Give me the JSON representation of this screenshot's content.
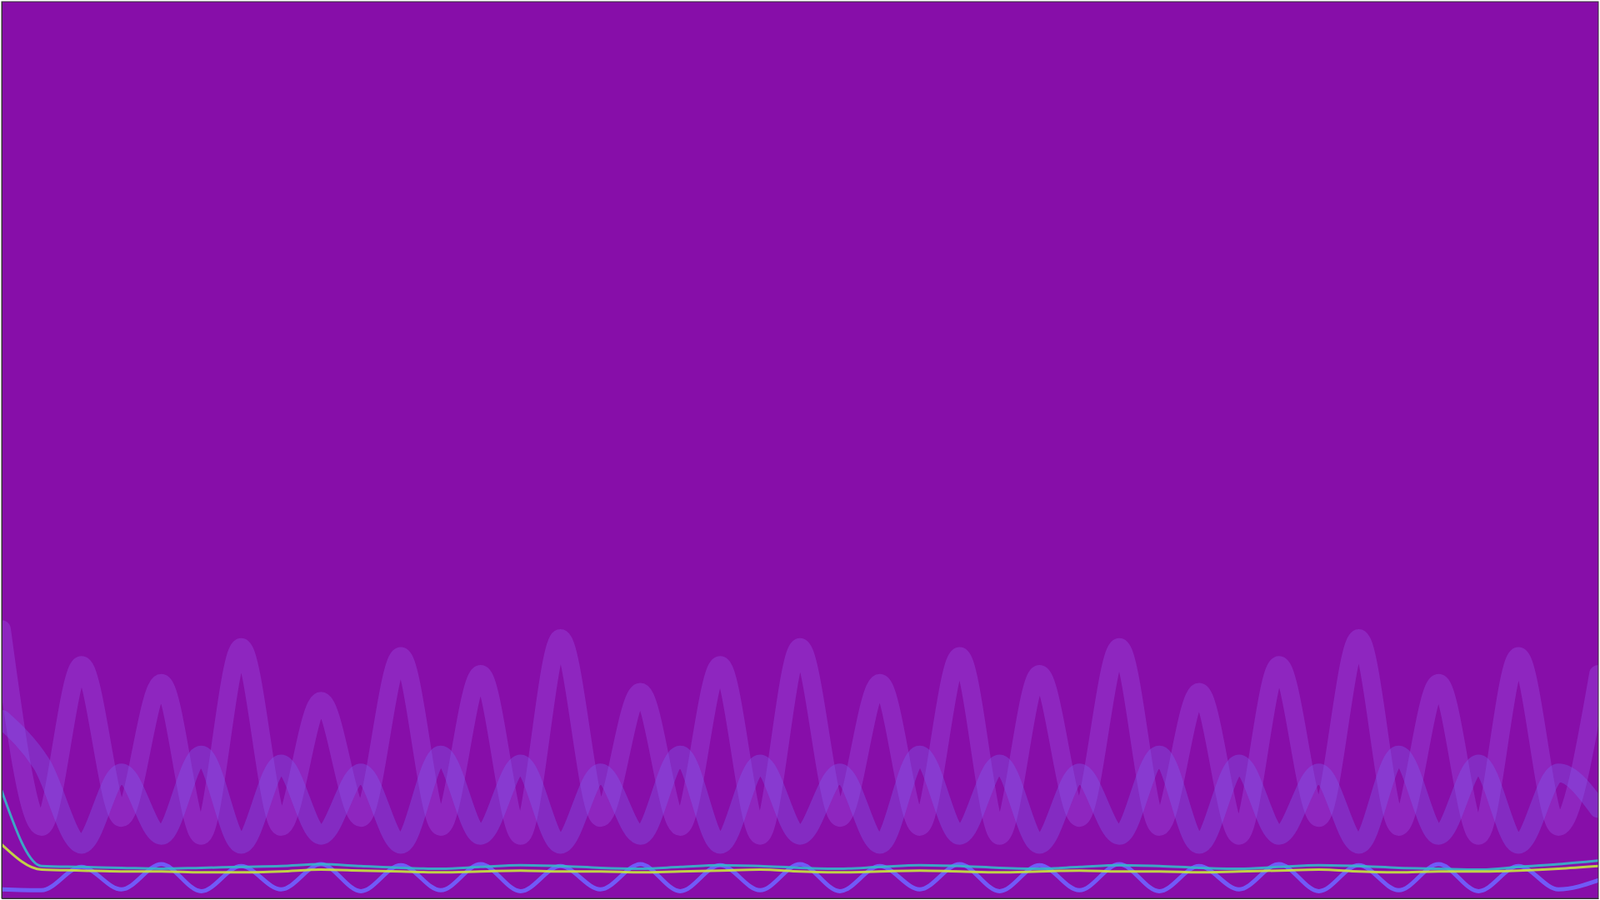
{
  "chart_data": {
    "type": "line",
    "tick_labels": false,
    "grid": false,
    "xlim": [
      0,
      100
    ],
    "ylim": [
      0,
      100
    ],
    "x": [
      0,
      2.5,
      5,
      7.5,
      10,
      12.5,
      15,
      17.5,
      20,
      22.5,
      25,
      27.5,
      30,
      32.5,
      35,
      37.5,
      40,
      42.5,
      45,
      47.5,
      50,
      52.5,
      55,
      57.5,
      60,
      62.5,
      65,
      67.5,
      70,
      72.5,
      75,
      77.5,
      80,
      82.5,
      85,
      87.5,
      90,
      92.5,
      95,
      97.5,
      100
    ],
    "series": [
      {
        "color": "#9a52e8",
        "values": [
          30,
          8,
          26,
          9,
          24,
          7,
          28,
          8,
          22,
          9,
          27,
          8,
          25,
          7,
          29,
          9,
          23,
          8,
          26,
          7,
          28,
          9,
          24,
          8,
          27,
          7,
          25,
          9,
          28,
          8,
          23,
          7,
          26,
          9,
          29,
          8,
          24,
          7,
          27,
          8,
          25
        ]
      },
      {
        "color": "#7f62f2",
        "values": [
          20,
          15,
          6,
          14,
          7,
          16,
          6,
          15,
          7,
          14,
          6,
          16,
          7,
          15,
          6,
          14,
          7,
          16,
          6,
          15,
          7,
          14,
          6,
          16,
          7,
          15,
          6,
          14,
          7,
          16,
          6,
          15,
          7,
          14,
          6,
          16,
          7,
          15,
          6,
          14,
          10
        ]
      },
      {
        "color": "#6f63ff",
        "values": [
          1,
          0.9,
          3.5,
          1.0,
          3.8,
          0.8,
          3.6,
          1.0,
          3.8,
          0.8,
          3.7,
          0.9,
          3.8,
          0.8,
          3.6,
          1.0,
          3.8,
          0.8,
          3.7,
          0.9,
          3.8,
          0.8,
          3.6,
          1.0,
          3.8,
          0.8,
          3.7,
          0.9,
          3.8,
          0.8,
          3.6,
          1.0,
          3.8,
          0.8,
          3.7,
          0.9,
          3.8,
          0.8,
          3.6,
          1.0,
          2.0
        ]
      },
      {
        "color": "#35b7c8",
        "values": [
          12,
          3.6,
          3.5,
          3.4,
          3.3,
          3.4,
          3.5,
          3.6,
          3.8,
          3.6,
          3.4,
          3.3,
          3.5,
          3.7,
          3.6,
          3.4,
          3.3,
          3.5,
          3.7,
          3.6,
          3.4,
          3.3,
          3.5,
          3.7,
          3.6,
          3.4,
          3.3,
          3.5,
          3.7,
          3.6,
          3.4,
          3.3,
          3.5,
          3.7,
          3.6,
          3.4,
          3.3,
          3.2,
          3.5,
          3.8,
          4.2
        ]
      },
      {
        "color": "#c8e63c",
        "values": [
          6,
          3.2,
          3.1,
          3.0,
          3.0,
          2.9,
          2.9,
          3.0,
          3.2,
          3.1,
          3.0,
          2.9,
          3.0,
          3.1,
          3.0,
          3.0,
          2.9,
          3.0,
          3.1,
          3.2,
          3.0,
          2.9,
          3.0,
          3.1,
          3.0,
          2.9,
          3.0,
          3.1,
          3.0,
          3.0,
          2.9,
          3.0,
          3.1,
          3.2,
          3.0,
          2.9,
          3.0,
          3.0,
          3.1,
          3.3,
          3.6
        ]
      }
    ]
  }
}
